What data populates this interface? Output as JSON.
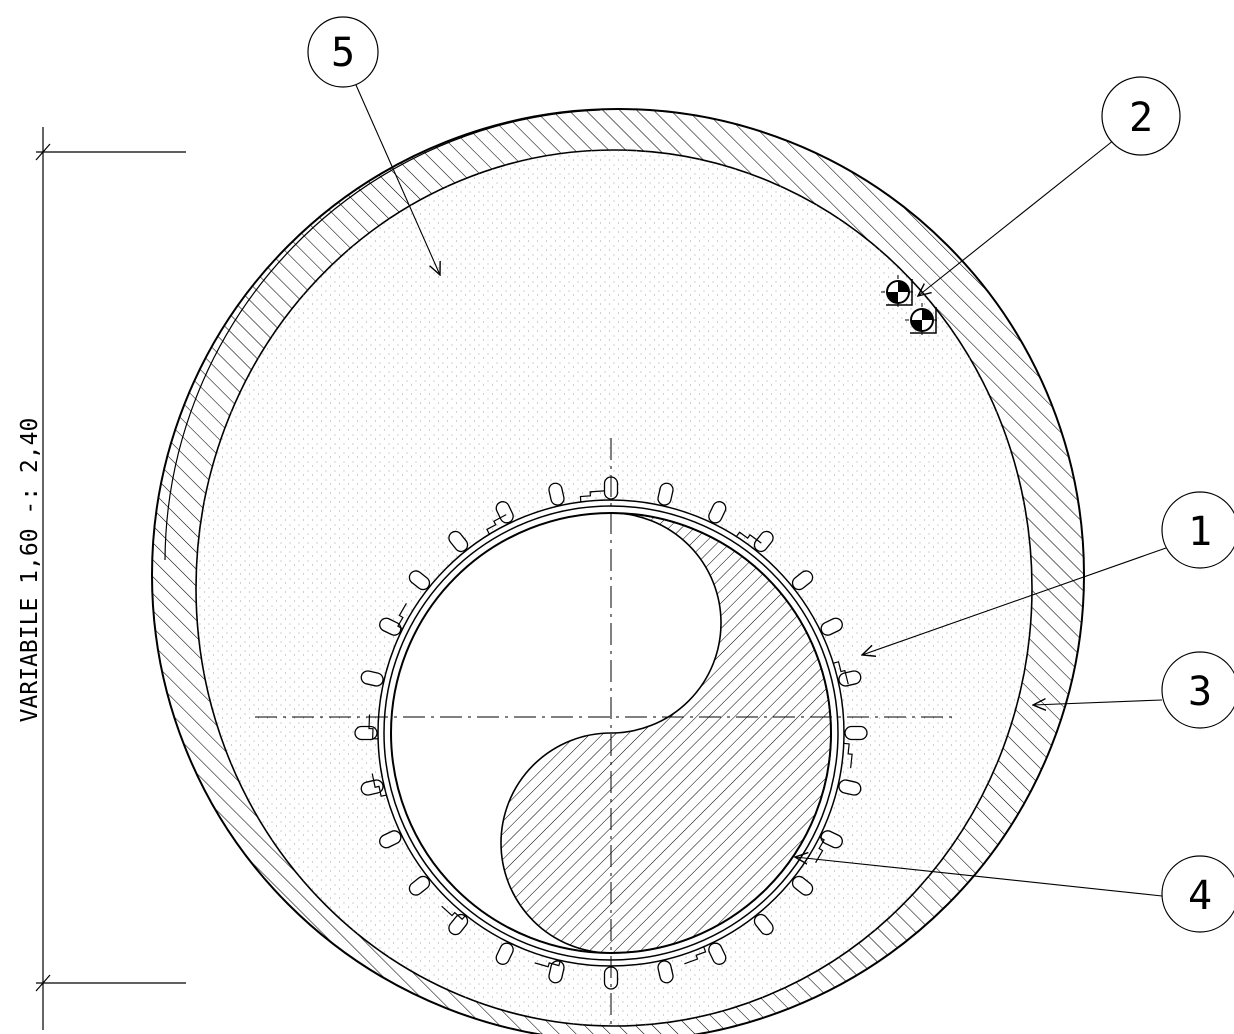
{
  "dimension": {
    "text": "VARIABILE 1,60 -: 2,40"
  },
  "callouts": [
    {
      "id": "callout-1",
      "label": "1"
    },
    {
      "id": "callout-2",
      "label": "2"
    },
    {
      "id": "callout-3",
      "label": "3"
    },
    {
      "id": "callout-4",
      "label": "4"
    },
    {
      "id": "callout-5",
      "label": "5"
    }
  ],
  "colors": {
    "line": "#000000",
    "background": "#ffffff",
    "fill_dots": "#9a9a9a"
  }
}
